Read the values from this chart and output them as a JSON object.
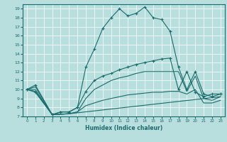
{
  "xlabel": "Humidex (Indice chaleur)",
  "xlim": [
    -0.5,
    23.5
  ],
  "ylim": [
    7,
    19.5
  ],
  "yticks": [
    7,
    8,
    9,
    10,
    11,
    12,
    13,
    14,
    15,
    16,
    17,
    18,
    19
  ],
  "xticks": [
    0,
    1,
    2,
    3,
    4,
    5,
    6,
    7,
    8,
    9,
    10,
    11,
    12,
    13,
    14,
    15,
    16,
    17,
    18,
    19,
    20,
    21,
    22,
    23
  ],
  "bg_color": "#b8dede",
  "line_color": "#1a6b6b",
  "grid_color": "#ffffff",
  "line1_x": [
    0,
    1,
    3,
    4,
    5,
    6,
    7,
    8,
    9,
    10,
    11,
    12,
    13,
    14,
    15,
    16,
    17,
    18,
    19,
    20,
    21,
    22,
    23
  ],
  "line1_y": [
    10.0,
    9.7,
    7.2,
    7.5,
    7.5,
    8.0,
    12.5,
    14.5,
    16.8,
    18.0,
    19.0,
    18.2,
    18.5,
    19.2,
    18.0,
    17.8,
    16.5,
    12.5,
    10.0,
    12.0,
    9.5,
    9.2,
    9.5
  ],
  "line2_x": [
    0,
    1,
    3,
    4,
    5,
    6,
    7,
    8,
    9,
    10,
    11,
    12,
    13,
    14,
    15,
    16,
    17,
    18,
    19,
    20,
    21,
    22,
    23
  ],
  "line2_y": [
    10.0,
    10.5,
    7.2,
    7.5,
    7.5,
    8.0,
    9.8,
    11.0,
    11.5,
    11.8,
    12.2,
    12.5,
    12.8,
    13.0,
    13.2,
    13.4,
    13.5,
    10.0,
    12.0,
    9.7,
    9.2,
    9.5,
    9.5
  ],
  "line3_x": [
    0,
    1,
    3,
    5,
    6,
    7,
    8,
    9,
    10,
    11,
    12,
    13,
    14,
    15,
    16,
    17,
    18,
    19,
    20,
    21,
    22,
    23
  ],
  "line3_y": [
    10.0,
    10.3,
    7.2,
    7.3,
    7.5,
    9.0,
    10.0,
    10.5,
    11.0,
    11.3,
    11.5,
    11.8,
    12.0,
    12.0,
    12.0,
    12.0,
    12.0,
    9.8,
    11.5,
    9.0,
    8.8,
    9.2
  ],
  "line4_x": [
    0,
    1,
    3,
    5,
    6,
    7,
    8,
    9,
    10,
    11,
    12,
    13,
    14,
    15,
    16,
    17,
    18,
    19,
    20,
    21,
    22,
    23
  ],
  "line4_y": [
    10.0,
    10.0,
    7.2,
    7.3,
    7.5,
    8.2,
    8.5,
    8.8,
    9.0,
    9.2,
    9.4,
    9.5,
    9.6,
    9.7,
    9.7,
    9.8,
    9.8,
    9.5,
    10.0,
    8.5,
    8.5,
    8.8
  ],
  "line5_x": [
    0,
    1,
    3,
    5,
    23
  ],
  "line5_y": [
    10.0,
    9.8,
    7.2,
    7.3,
    9.2
  ]
}
